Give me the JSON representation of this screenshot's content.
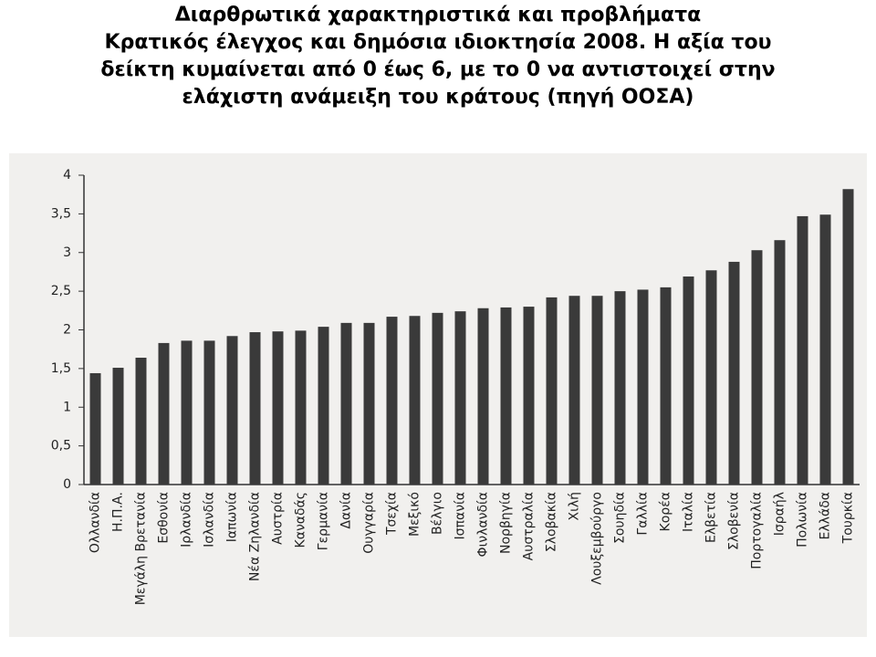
{
  "chart_data": {
    "type": "bar",
    "title": "Διαρθρωτικά χαρακτηριστικά και προβλήματα",
    "subtitle": "Κρατικός έλεγχος και δημόσια ιδιοκτησία 2008. Η αξία του δείκτη κυμαίνεται από 0 έως 6, με το 0 να αντιστοιχεί στην ελάχιστη ανάμειξη του κράτους (πηγή ΟΟΣΑ)",
    "categories": [
      "Ολλανδία",
      "Η.Π.Α.",
      "Μεγάλη Βρετανία",
      "Εσθονία",
      "Ιρλανδία",
      "Ισλανδία",
      "Ιαπωνία",
      "Νέα Ζηλανδία",
      "Αυστρία",
      "Καναδάς",
      "Γερμανία",
      "Δανία",
      "Ουγγαρία",
      "Τσεχία",
      "Μεξικό",
      "Βέλγιο",
      "Ισπανία",
      "Φινλανδία",
      "Νορβηγία",
      "Αυστραλία",
      "Σλοβακία",
      "Χιλή",
      "Λουξεμβούργο",
      "Σουηδία",
      "Γαλλία",
      "Κορέα",
      "Ιταλία",
      "Ελβετία",
      "Σλοβενία",
      "Πορτογαλία",
      "Ισραήλ",
      "Πολωνία",
      "Ελλάδα",
      "Τουρκία"
    ],
    "values": [
      1.44,
      1.51,
      1.64,
      1.83,
      1.86,
      1.86,
      1.92,
      1.97,
      1.98,
      1.99,
      2.04,
      2.09,
      2.09,
      2.17,
      2.18,
      2.22,
      2.24,
      2.28,
      2.29,
      2.3,
      2.42,
      2.44,
      2.44,
      2.5,
      2.52,
      2.55,
      2.69,
      2.77,
      2.88,
      3.03,
      3.16,
      3.47,
      3.49,
      3.82
    ],
    "color": "#3a3a3a",
    "ylim": [
      0,
      4
    ],
    "yticks": [
      0,
      {
        "value": 0.5,
        "label": "0,5"
      },
      1,
      {
        "value": 1.5,
        "label": "1,5"
      },
      2,
      {
        "value": 2.5,
        "label": "2,5"
      },
      3,
      {
        "value": 3.5,
        "label": "3,5"
      },
      4
    ],
    "grid": false
  }
}
